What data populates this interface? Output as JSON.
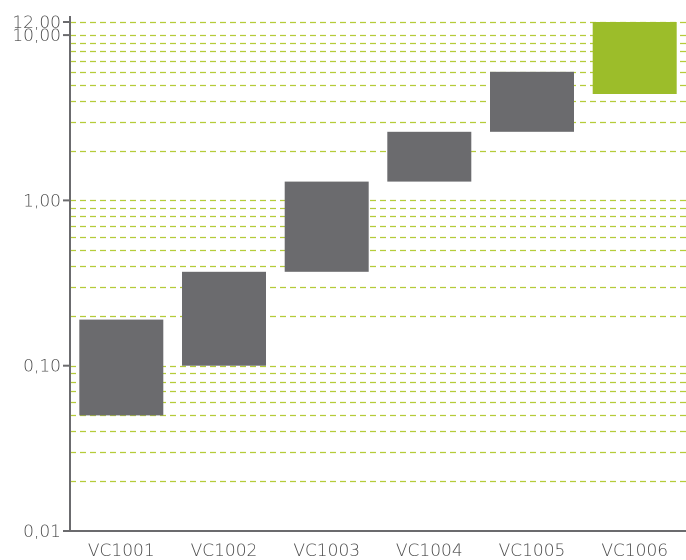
{
  "chart_data": {
    "type": "floating-bar",
    "title": "",
    "xlabel": "",
    "ylabel": "",
    "yscale": "log",
    "ylim": [
      0.01,
      12
    ],
    "y_ticks": [
      {
        "value": 0.01,
        "label": "0,01"
      },
      {
        "value": 0.1,
        "label": "0,10"
      },
      {
        "value": 1,
        "label": "1,00"
      },
      {
        "value": 10,
        "label": "10,00"
      },
      {
        "value": 12,
        "label": "12,00"
      }
    ],
    "grid": true,
    "categories": [
      "VC1001",
      "VC1002",
      "VC1003",
      "VC1004",
      "VC1005",
      "VC1006"
    ],
    "ranges": [
      {
        "low": 0.05,
        "high": 0.19
      },
      {
        "low": 0.1,
        "high": 0.37
      },
      {
        "low": 0.37,
        "high": 1.3
      },
      {
        "low": 1.3,
        "high": 2.6
      },
      {
        "low": 2.6,
        "high": 6.0
      },
      {
        "low": 4.4,
        "high": 12.0
      }
    ],
    "colors": {
      "bar": "#6b6b6e",
      "highlight": "#9cbd2a",
      "grid": "#b5cc3a",
      "axis": "#6b6b6e",
      "text": "#4a4a4a"
    },
    "highlight_index": 5
  }
}
